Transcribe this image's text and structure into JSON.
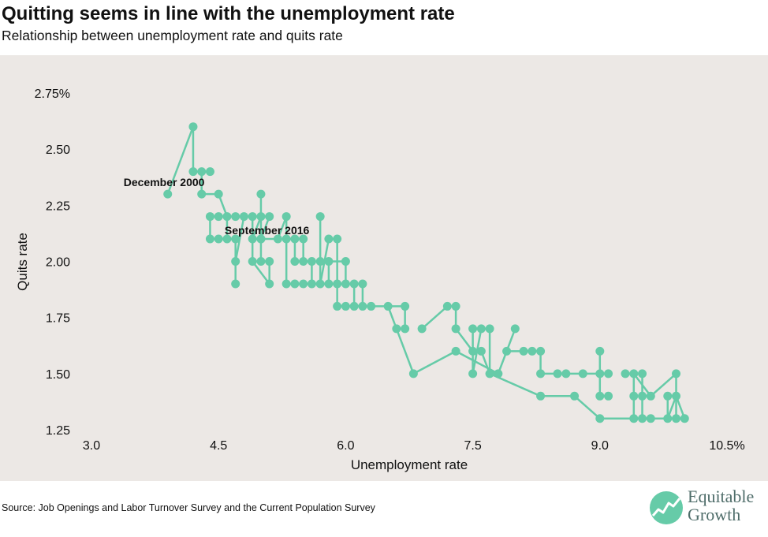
{
  "title": "Quitting seems in line with the unemployment rate",
  "subtitle": "Relationship between unemployment rate and quits rate",
  "source": "Source: Job Openings and Labor Turnover Survey and the Current Population Survey",
  "logo": {
    "line1": "Equitable",
    "line2": "Growth"
  },
  "colors": {
    "series": "#66cba8",
    "panel": "#ece8e5",
    "logo": "#4f6d6a"
  },
  "chart_data": {
    "type": "scatter",
    "connected": true,
    "xlabel": "Unemployment rate",
    "ylabel": "Quits rate",
    "xlim": [
      3.0,
      10.5
    ],
    "ylim": [
      1.25,
      2.75
    ],
    "xticks": [
      3.0,
      4.5,
      6.0,
      7.5,
      9.0,
      10.5
    ],
    "yticks": [
      1.25,
      1.5,
      1.75,
      2.0,
      2.25,
      2.5,
      2.75
    ],
    "xtick_labels": [
      "3.0",
      "4.5",
      "6.0",
      "7.5",
      "9.0",
      "10.5%"
    ],
    "ytick_labels": [
      "1.25",
      "1.50",
      "1.75",
      "2.00",
      "2.25",
      "2.50",
      "2.75%"
    ],
    "grid": false,
    "annotations": [
      {
        "text": "December 2000",
        "x": 3.9,
        "y": 2.3
      },
      {
        "text": "September 2016",
        "x": 5.0,
        "y": 2.1
      }
    ],
    "points": [
      [
        3.9,
        2.3
      ],
      [
        4.2,
        2.6
      ],
      [
        4.2,
        2.4
      ],
      [
        4.3,
        2.4
      ],
      [
        4.4,
        2.4
      ],
      [
        4.3,
        2.3
      ],
      [
        4.5,
        2.3
      ],
      [
        4.4,
        2.2
      ],
      [
        4.5,
        2.2
      ],
      [
        4.6,
        2.2
      ],
      [
        4.4,
        2.1
      ],
      [
        4.5,
        2.1
      ],
      [
        4.6,
        2.1
      ],
      [
        4.7,
        2.1
      ],
      [
        4.7,
        2.2
      ],
      [
        4.8,
        2.2
      ],
      [
        4.7,
        2.0
      ],
      [
        4.7,
        1.9
      ],
      [
        4.9,
        2.2
      ],
      [
        5.0,
        2.2
      ],
      [
        5.0,
        2.3
      ],
      [
        5.1,
        2.2
      ],
      [
        4.9,
        2.1
      ],
      [
        5.0,
        2.1
      ],
      [
        4.9,
        2.0
      ],
      [
        5.1,
        2.0
      ],
      [
        5.0,
        2.0
      ],
      [
        5.1,
        1.9
      ],
      [
        5.0,
        2.1
      ],
      [
        5.2,
        2.1
      ],
      [
        5.3,
        2.2
      ],
      [
        5.3,
        2.1
      ],
      [
        5.4,
        2.1
      ],
      [
        5.4,
        2.0
      ],
      [
        5.5,
        2.1
      ],
      [
        5.5,
        2.0
      ],
      [
        5.6,
        2.0
      ],
      [
        5.3,
        1.9
      ],
      [
        5.4,
        1.9
      ],
      [
        5.5,
        1.9
      ],
      [
        5.6,
        1.9
      ],
      [
        5.7,
        1.9
      ],
      [
        5.7,
        2.0
      ],
      [
        5.8,
        2.0
      ],
      [
        5.7,
        2.2
      ],
      [
        5.8,
        1.9
      ],
      [
        5.9,
        1.9
      ],
      [
        5.8,
        2.1
      ],
      [
        5.9,
        2.1
      ],
      [
        6.0,
        2.0
      ],
      [
        6.0,
        1.9
      ],
      [
        6.1,
        1.9
      ],
      [
        6.2,
        1.9
      ],
      [
        5.9,
        1.8
      ],
      [
        6.0,
        1.8
      ],
      [
        6.1,
        1.8
      ],
      [
        6.2,
        1.8
      ],
      [
        6.3,
        1.8
      ],
      [
        6.5,
        1.8
      ],
      [
        6.7,
        1.8
      ],
      [
        6.6,
        1.7
      ],
      [
        6.7,
        1.7
      ],
      [
        6.9,
        1.7
      ],
      [
        7.2,
        1.8
      ],
      [
        7.3,
        1.8
      ],
      [
        7.3,
        1.7
      ],
      [
        7.3,
        1.6
      ],
      [
        6.8,
        1.5
      ],
      [
        7.5,
        1.7
      ],
      [
        7.6,
        1.7
      ],
      [
        7.7,
        1.7
      ],
      [
        8.0,
        1.7
      ],
      [
        7.5,
        1.6
      ],
      [
        7.5,
        1.5
      ],
      [
        7.6,
        1.6
      ],
      [
        7.7,
        1.5
      ],
      [
        7.8,
        1.5
      ],
      [
        7.9,
        1.6
      ],
      [
        8.1,
        1.6
      ],
      [
        8.2,
        1.6
      ],
      [
        8.3,
        1.6
      ],
      [
        8.3,
        1.5
      ],
      [
        8.5,
        1.5
      ],
      [
        8.6,
        1.5
      ],
      [
        8.8,
        1.5
      ],
      [
        9.0,
        1.5
      ],
      [
        9.1,
        1.5
      ],
      [
        9.0,
        1.6
      ],
      [
        9.0,
        1.4
      ],
      [
        9.1,
        1.4
      ],
      [
        8.3,
        1.4
      ],
      [
        8.7,
        1.4
      ],
      [
        9.0,
        1.3
      ],
      [
        9.4,
        1.5
      ],
      [
        9.3,
        1.5
      ],
      [
        9.5,
        1.5
      ],
      [
        9.4,
        1.4
      ],
      [
        9.5,
        1.4
      ],
      [
        9.6,
        1.4
      ],
      [
        9.8,
        1.4
      ],
      [
        9.9,
        1.4
      ],
      [
        9.9,
        1.5
      ],
      [
        9.4,
        1.3
      ],
      [
        9.5,
        1.3
      ],
      [
        9.6,
        1.3
      ],
      [
        9.8,
        1.3
      ],
      [
        9.9,
        1.3
      ],
      [
        10.0,
        1.3
      ]
    ],
    "segments": [
      [
        3.9,
        2.3,
        4.2,
        2.6
      ],
      [
        4.2,
        2.6,
        4.2,
        2.4
      ],
      [
        4.2,
        2.4,
        4.4,
        2.4
      ],
      [
        4.3,
        2.4,
        4.3,
        2.3
      ],
      [
        4.3,
        2.3,
        4.5,
        2.3
      ],
      [
        4.5,
        2.3,
        4.6,
        2.2
      ],
      [
        4.4,
        2.2,
        5.1,
        2.2
      ],
      [
        4.4,
        2.1,
        4.7,
        2.1
      ],
      [
        4.4,
        2.2,
        4.4,
        2.1
      ],
      [
        4.6,
        2.1,
        4.6,
        2.2
      ],
      [
        4.7,
        2.1,
        4.7,
        1.9
      ],
      [
        4.7,
        2.0,
        4.8,
        2.2
      ],
      [
        4.9,
        2.2,
        4.9,
        2.0
      ],
      [
        4.9,
        2.0,
        5.1,
        1.9
      ],
      [
        5.0,
        2.3,
        5.0,
        2.0
      ],
      [
        5.0,
        2.0,
        5.1,
        2.0
      ],
      [
        5.1,
        2.0,
        5.1,
        1.9
      ],
      [
        5.0,
        2.1,
        5.2,
        2.1
      ],
      [
        5.1,
        2.2,
        5.0,
        2.1
      ],
      [
        4.9,
        2.1,
        5.0,
        2.2
      ],
      [
        5.2,
        2.1,
        5.3,
        2.2
      ],
      [
        5.3,
        2.1,
        5.5,
        2.1
      ],
      [
        5.4,
        2.1,
        5.4,
        2.0
      ],
      [
        5.5,
        2.1,
        5.5,
        2.0
      ],
      [
        5.4,
        2.0,
        5.6,
        2.0
      ],
      [
        5.3,
        1.9,
        5.3,
        2.2
      ],
      [
        5.3,
        1.9,
        6.0,
        1.9
      ],
      [
        5.6,
        2.0,
        5.6,
        1.9
      ],
      [
        5.7,
        2.0,
        5.9,
        2.0
      ],
      [
        5.7,
        1.9,
        5.7,
        2.2
      ],
      [
        5.8,
        2.0,
        5.8,
        1.9
      ],
      [
        5.8,
        2.1,
        5.9,
        2.1
      ],
      [
        5.8,
        2.1,
        5.7,
        1.9
      ],
      [
        5.9,
        2.0,
        6.0,
        2.0
      ],
      [
        6.0,
        2.0,
        6.0,
        1.9
      ],
      [
        5.9,
        2.1,
        5.9,
        1.8
      ],
      [
        5.9,
        1.8,
        6.3,
        1.8
      ],
      [
        6.0,
        1.9,
        6.2,
        1.9
      ],
      [
        6.2,
        1.9,
        6.2,
        1.8
      ],
      [
        6.1,
        1.9,
        6.1,
        1.8
      ],
      [
        6.3,
        1.8,
        6.7,
        1.8
      ],
      [
        6.5,
        1.8,
        6.6,
        1.7
      ],
      [
        6.6,
        1.7,
        6.7,
        1.7
      ],
      [
        6.7,
        1.7,
        6.7,
        1.8
      ],
      [
        6.6,
        1.7,
        6.8,
        1.5
      ],
      [
        6.8,
        1.5,
        7.3,
        1.6
      ],
      [
        6.9,
        1.7,
        7.2,
        1.8
      ],
      [
        7.2,
        1.8,
        7.3,
        1.8
      ],
      [
        7.3,
        1.8,
        7.3,
        1.7
      ],
      [
        7.3,
        1.7,
        7.5,
        1.6
      ],
      [
        7.3,
        1.6,
        7.8,
        1.5
      ],
      [
        7.5,
        1.7,
        7.7,
        1.7
      ],
      [
        7.5,
        1.7,
        7.5,
        1.5
      ],
      [
        7.5,
        1.5,
        7.6,
        1.7
      ],
      [
        7.6,
        1.6,
        7.7,
        1.5
      ],
      [
        7.7,
        1.7,
        7.7,
        1.5
      ],
      [
        7.7,
        1.5,
        7.8,
        1.5
      ],
      [
        7.8,
        1.5,
        8.0,
        1.7
      ],
      [
        7.9,
        1.6,
        8.3,
        1.6
      ],
      [
        8.3,
        1.6,
        8.3,
        1.5
      ],
      [
        8.3,
        1.5,
        9.1,
        1.5
      ],
      [
        9.0,
        1.6,
        9.0,
        1.4
      ],
      [
        9.0,
        1.4,
        9.1,
        1.4
      ],
      [
        7.7,
        1.5,
        8.3,
        1.4
      ],
      [
        8.3,
        1.4,
        8.7,
        1.4
      ],
      [
        8.7,
        1.4,
        9.0,
        1.3
      ],
      [
        9.0,
        1.3,
        10.0,
        1.3
      ],
      [
        9.3,
        1.5,
        9.5,
        1.5
      ],
      [
        9.4,
        1.5,
        9.4,
        1.3
      ],
      [
        9.4,
        1.5,
        9.6,
        1.4
      ],
      [
        9.5,
        1.5,
        9.5,
        1.3
      ],
      [
        9.5,
        1.4,
        9.6,
        1.4
      ],
      [
        9.6,
        1.4,
        9.9,
        1.5
      ],
      [
        9.8,
        1.4,
        9.9,
        1.4
      ],
      [
        9.9,
        1.5,
        9.9,
        1.3
      ],
      [
        9.8,
        1.3,
        9.9,
        1.4
      ],
      [
        9.9,
        1.4,
        10.0,
        1.3
      ],
      [
        9.8,
        1.4,
        9.8,
        1.3
      ]
    ]
  }
}
